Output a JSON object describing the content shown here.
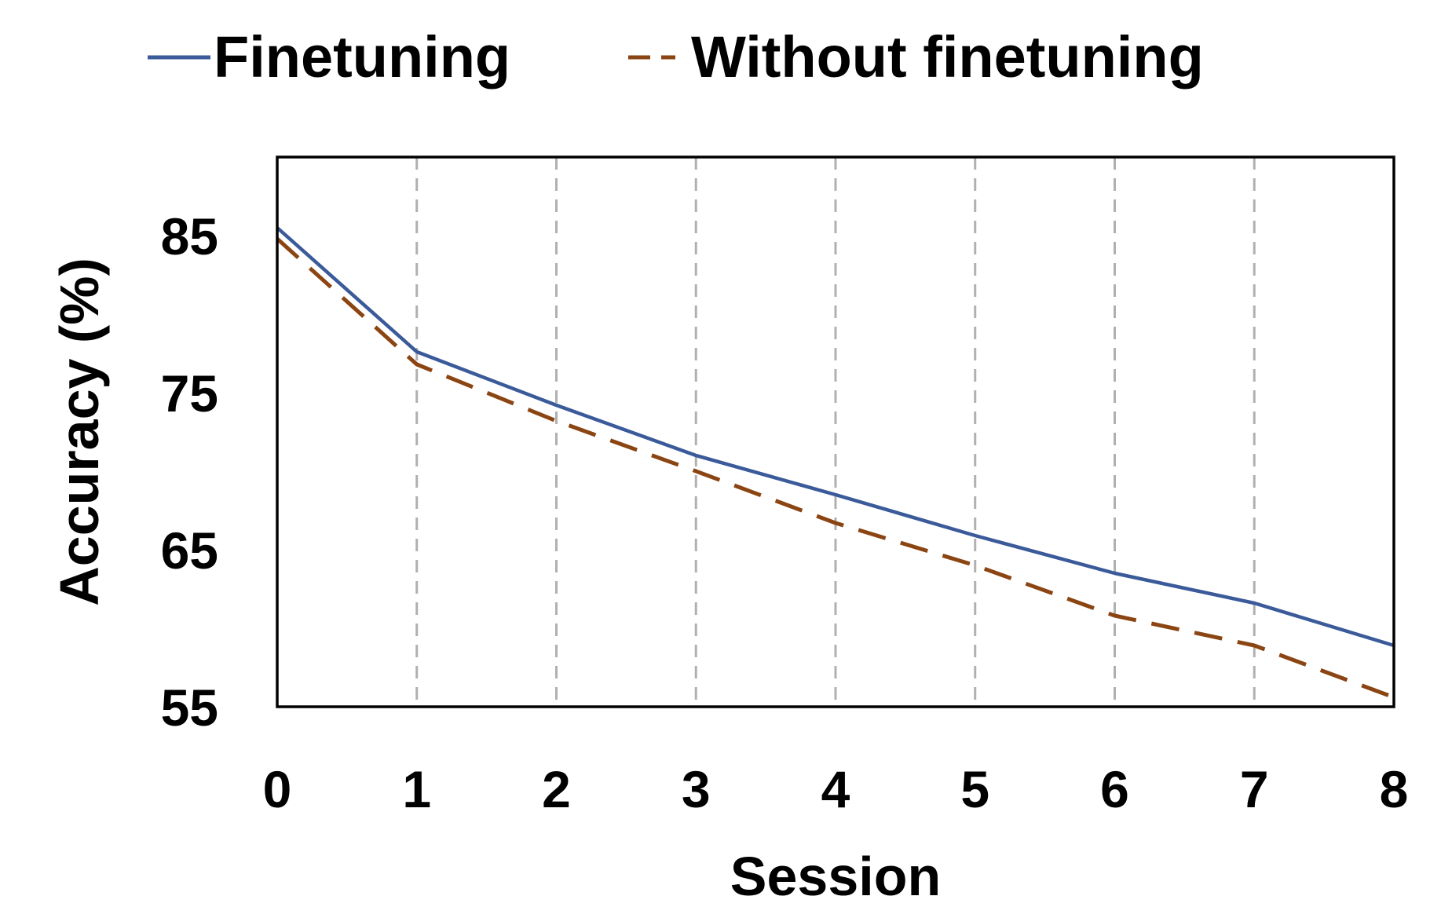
{
  "chart_data": {
    "type": "line",
    "xlabel": "Session",
    "ylabel": "Accuracy (%)",
    "x": [
      0,
      1,
      2,
      3,
      4,
      5,
      6,
      7,
      8
    ],
    "xlim": [
      0,
      8
    ],
    "ylim": [
      55,
      90
    ],
    "yticks": [
      55,
      65,
      75,
      85
    ],
    "grid": "vertical dashed",
    "legend": "top",
    "series": [
      {
        "name": "Finetuning",
        "color": "#3A5A9A",
        "style": "solid",
        "values": [
          85.5,
          77.6,
          74.2,
          71.0,
          68.5,
          65.9,
          63.5,
          61.6,
          58.9
        ]
      },
      {
        "name": "Without finetuning",
        "color": "#8B4513",
        "style": "dashed",
        "values": [
          84.8,
          76.8,
          73.2,
          70.0,
          66.7,
          64.0,
          60.8,
          58.9,
          55.6
        ]
      }
    ]
  }
}
